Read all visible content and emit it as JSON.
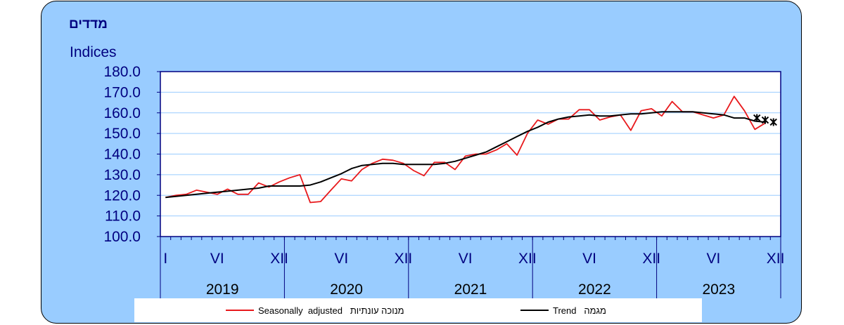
{
  "title_hebrew": "מדדים",
  "unit_label": "Indices",
  "colors": {
    "panel_bg": "#99ccff",
    "seasonal": "#e8191c",
    "trend": "#000000",
    "grid": "#99ccff",
    "axis": "#000080"
  },
  "legend": {
    "seasonal": "Seasonally  adjusted   מנוכה עונתיות",
    "trend": "Trend   מגמה"
  },
  "chart_data": {
    "type": "line",
    "ylim": [
      100,
      180
    ],
    "yticks": [
      "100.0",
      "110.0",
      "120.0",
      "130.0",
      "140.0",
      "150.0",
      "160.0",
      "170.0",
      "180.0"
    ],
    "month_tick_labels": [
      "I",
      "VI",
      "XII",
      "VI",
      "XII",
      "VI",
      "XII",
      "VI",
      "XII",
      "VI",
      "XII"
    ],
    "month_tick_index": [
      1,
      6,
      12,
      18,
      24,
      30,
      36,
      42,
      48,
      54,
      60
    ],
    "year_labels": [
      "2019",
      "2020",
      "2021",
      "2022",
      "2023"
    ],
    "series": [
      {
        "name": "Seasonally  adjusted   מנוכה עונתיות",
        "color": "#e8191c",
        "x": [
          1,
          2,
          3,
          4,
          5,
          6,
          7,
          8,
          9,
          10,
          11,
          12,
          13,
          14,
          15,
          16,
          17,
          18,
          19,
          20,
          21,
          22,
          23,
          24,
          25,
          26,
          27,
          28,
          29,
          30,
          31,
          32,
          33,
          34,
          35,
          36,
          37,
          38,
          39,
          40,
          41,
          42,
          43,
          44,
          45,
          46,
          47,
          48,
          49,
          50,
          51,
          52,
          53,
          54,
          55,
          56,
          57,
          58,
          59
        ],
        "values": [
          119,
          120,
          120.5,
          122.5,
          121.5,
          120.5,
          123,
          120.5,
          120.5,
          126,
          124,
          126.5,
          128.5,
          130,
          116.5,
          117,
          122.5,
          128,
          127,
          132.5,
          135.5,
          137.5,
          137,
          135.5,
          132,
          129.5,
          136,
          136,
          132.5,
          139,
          140,
          140,
          142,
          145,
          139.5,
          150,
          156.5,
          154.5,
          157,
          157,
          161.5,
          161.5,
          156.5,
          158,
          159,
          151.5,
          161,
          162,
          158.5,
          165.5,
          160.5,
          160.5,
          159,
          157.5,
          159,
          168,
          161,
          152,
          155
        ]
      },
      {
        "name": "Trend   מגמה",
        "color": "#000000",
        "x": [
          1,
          2,
          3,
          4,
          5,
          6,
          7,
          8,
          9,
          10,
          11,
          12,
          13,
          14,
          15,
          16,
          17,
          18,
          19,
          20,
          21,
          22,
          23,
          24,
          25,
          26,
          27,
          28,
          29,
          30,
          31,
          32,
          33,
          34,
          35,
          36,
          37,
          38,
          39,
          40,
          41,
          42,
          43,
          44,
          45,
          46,
          47,
          48,
          49,
          50,
          51,
          52,
          53,
          54,
          55,
          56,
          57,
          58,
          59
        ],
        "values": [
          119,
          119.5,
          120,
          120.5,
          121,
          121.5,
          122,
          122.5,
          123,
          123.5,
          124.5,
          124.5,
          124.5,
          124.5,
          125,
          126.5,
          128.5,
          130.5,
          133,
          134.5,
          135,
          135.5,
          135.5,
          135,
          135,
          135,
          135,
          135.5,
          136.5,
          138,
          139.5,
          141,
          143.5,
          146,
          148.5,
          151,
          153,
          155.5,
          157,
          158,
          158.5,
          159,
          158.5,
          158.5,
          159,
          159.5,
          159.5,
          160,
          160.5,
          160.5,
          160.5,
          160.5,
          160,
          159.5,
          159,
          157.5,
          157.5,
          156,
          155.5
        ]
      }
    ],
    "markers_x": [
      58.2,
      59.0,
      59.8
    ],
    "markers_values": [
      157.5,
      156.5,
      155.5
    ]
  }
}
